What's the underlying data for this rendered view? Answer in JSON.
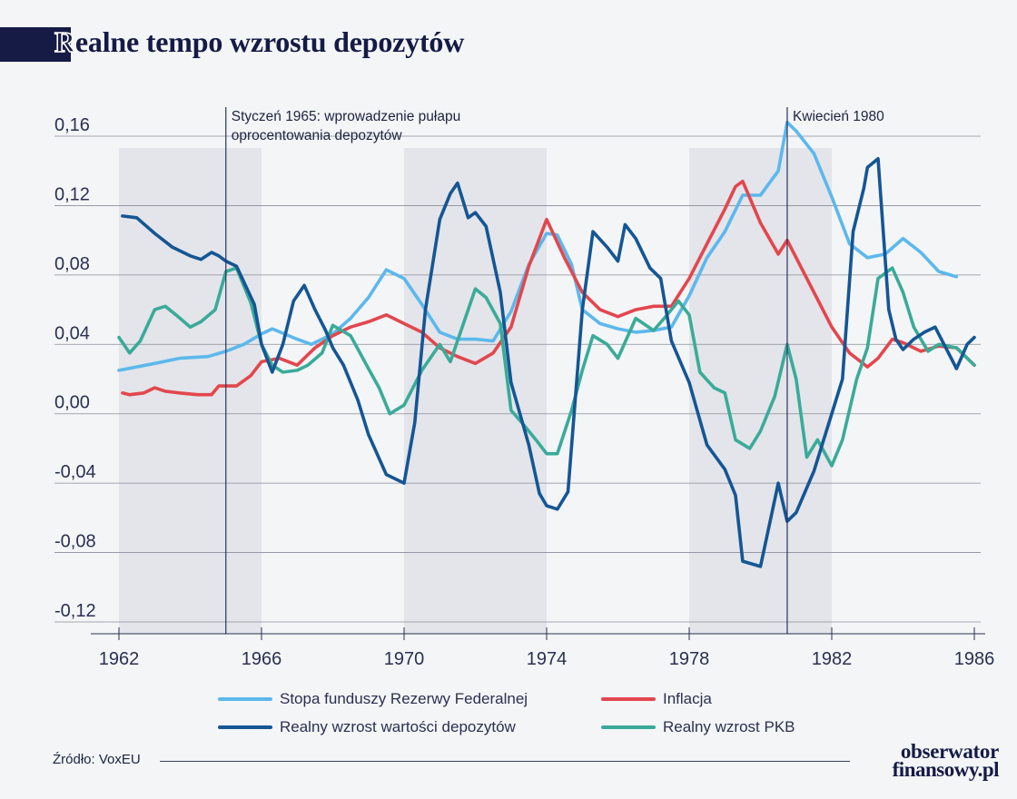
{
  "title": "Realne tempo wzrostu depozytów",
  "title_first_letter": "R",
  "title_rest": "ealne tempo wzrostu depozytów",
  "source": "Źródło: VoxEU",
  "logo": {
    "line1": "obserwator",
    "line2": "finansowy.pl"
  },
  "colors": {
    "fed": "#5cb8ec",
    "inflation": "#e2474d",
    "deposits": "#155694",
    "gdp": "#3aab98",
    "shade": "#e3e5ea",
    "grid": "#8a8d99",
    "vline": "#2a3163"
  },
  "chart_data": {
    "type": "line",
    "title": "Realne tempo wzrostu depozytów",
    "xlim": [
      1961.8,
      1986.3
    ],
    "ylim": [
      -0.125,
      0.175
    ],
    "x_ticks": [
      1962,
      1966,
      1970,
      1974,
      1978,
      1982,
      1986
    ],
    "x_tick_labels": [
      "1962",
      "1966",
      "1970",
      "1974",
      "1978",
      "1982",
      "1986"
    ],
    "y_ticks": [
      0.16,
      0.12,
      0.08,
      0.04,
      0.0,
      -0.04,
      -0.08,
      -0.12
    ],
    "y_tick_labels": [
      "0,16",
      "0,12",
      "0,08",
      "0,04",
      "0,00",
      "-0,04",
      "-0,08",
      "-0,12"
    ],
    "grid": "horizontal",
    "shaded_periods": [
      [
        1962,
        1966
      ],
      [
        1970,
        1974
      ],
      [
        1978,
        1982
      ]
    ],
    "annotations": [
      {
        "x": 1965.0,
        "lines": [
          "Styczeń 1965: wprowadzenie pułapu",
          "oprocentowania depozytów"
        ]
      },
      {
        "x": 1980.75,
        "lines": [
          "Kwiecień 1980"
        ]
      }
    ],
    "legend_position": "bottom",
    "series": [
      {
        "name": "Stopa funduszy Rezerwy Federalnej",
        "key": "fed",
        "x": [
          1962.0,
          1963.0,
          1963.7,
          1964.5,
          1965.0,
          1965.5,
          1966.0,
          1966.3,
          1967.0,
          1967.4,
          1968.0,
          1968.5,
          1969.0,
          1969.5,
          1970.0,
          1970.5,
          1971.0,
          1971.5,
          1972.0,
          1972.5,
          1973.0,
          1973.5,
          1974.0,
          1974.3,
          1974.7,
          1975.0,
          1975.5,
          1976.0,
          1976.5,
          1977.0,
          1977.5,
          1978.0,
          1978.5,
          1979.0,
          1979.5,
          1980.0,
          1980.5,
          1980.75,
          1981.0,
          1981.5,
          1982.0,
          1982.5,
          1983.0,
          1983.5,
          1984.0,
          1984.5,
          1985.0,
          1985.5
        ],
        "y": [
          0.025,
          0.029,
          0.032,
          0.033,
          0.036,
          0.04,
          0.046,
          0.049,
          0.043,
          0.04,
          0.046,
          0.055,
          0.067,
          0.083,
          0.078,
          0.063,
          0.047,
          0.043,
          0.043,
          0.042,
          0.059,
          0.086,
          0.104,
          0.103,
          0.086,
          0.06,
          0.052,
          0.049,
          0.047,
          0.048,
          0.05,
          0.068,
          0.09,
          0.105,
          0.126,
          0.126,
          0.14,
          0.168,
          0.163,
          0.15,
          0.125,
          0.098,
          0.09,
          0.092,
          0.101,
          0.093,
          0.082,
          0.079
        ]
      },
      {
        "name": "Inflacja",
        "key": "inflation",
        "x": [
          1962.1,
          1962.3,
          1962.7,
          1963.0,
          1963.3,
          1963.7,
          1964.2,
          1964.6,
          1964.8,
          1965.0,
          1965.3,
          1965.7,
          1966.0,
          1966.5,
          1967.0,
          1967.5,
          1968.0,
          1968.5,
          1969.0,
          1969.5,
          1970.0,
          1970.5,
          1971.0,
          1971.5,
          1972.0,
          1972.5,
          1973.0,
          1973.5,
          1974.0,
          1974.5,
          1975.0,
          1975.5,
          1976.0,
          1976.5,
          1977.0,
          1977.5,
          1978.0,
          1978.5,
          1979.0,
          1979.3,
          1979.5,
          1980.0,
          1980.5,
          1980.75,
          1981.0,
          1981.5,
          1982.0,
          1982.5,
          1983.0,
          1983.3,
          1983.7,
          1984.0,
          1984.5,
          1985.0,
          1985.5,
          1986.0
        ],
        "y": [
          0.012,
          0.011,
          0.012,
          0.015,
          0.013,
          0.012,
          0.011,
          0.011,
          0.016,
          0.016,
          0.016,
          0.022,
          0.03,
          0.032,
          0.028,
          0.038,
          0.045,
          0.05,
          0.053,
          0.057,
          0.052,
          0.047,
          0.038,
          0.033,
          0.029,
          0.035,
          0.05,
          0.085,
          0.112,
          0.09,
          0.07,
          0.06,
          0.056,
          0.06,
          0.062,
          0.062,
          0.078,
          0.098,
          0.118,
          0.131,
          0.134,
          0.11,
          0.092,
          0.1,
          0.09,
          0.07,
          0.05,
          0.035,
          0.027,
          0.032,
          0.043,
          0.041,
          0.036,
          0.039,
          0.038,
          0.028
        ]
      },
      {
        "name": "Realny wzrost wartości depozytów",
        "key": "deposits",
        "x": [
          1962.1,
          1962.5,
          1963.0,
          1963.5,
          1964.0,
          1964.3,
          1964.6,
          1964.8,
          1965.0,
          1965.3,
          1965.8,
          1966.0,
          1966.3,
          1966.6,
          1966.9,
          1967.2,
          1967.5,
          1967.8,
          1968.0,
          1968.3,
          1968.7,
          1969.0,
          1969.5,
          1970.0,
          1970.3,
          1970.6,
          1971.0,
          1971.3,
          1971.5,
          1971.8,
          1972.0,
          1972.3,
          1972.7,
          1973.0,
          1973.5,
          1973.8,
          1974.0,
          1974.3,
          1974.6,
          1975.0,
          1975.3,
          1975.7,
          1976.0,
          1976.2,
          1976.5,
          1976.9,
          1977.2,
          1977.5,
          1978.0,
          1978.5,
          1979.0,
          1979.3,
          1979.5,
          1980.0,
          1980.5,
          1980.75,
          1981.0,
          1981.5,
          1982.0,
          1982.3,
          1982.6,
          1982.9,
          1983.0,
          1983.3,
          1983.6,
          1983.8,
          1984.0,
          1984.3,
          1984.6,
          1984.9,
          1985.2,
          1985.5,
          1985.8,
          1986.0
        ],
        "y": [
          0.114,
          0.113,
          0.104,
          0.096,
          0.091,
          0.089,
          0.093,
          0.091,
          0.088,
          0.085,
          0.063,
          0.04,
          0.024,
          0.04,
          0.065,
          0.074,
          0.06,
          0.048,
          0.038,
          0.028,
          0.008,
          -0.012,
          -0.035,
          -0.04,
          -0.005,
          0.06,
          0.112,
          0.127,
          0.133,
          0.113,
          0.116,
          0.108,
          0.07,
          0.018,
          -0.018,
          -0.046,
          -0.053,
          -0.055,
          -0.045,
          0.06,
          0.105,
          0.096,
          0.088,
          0.109,
          0.101,
          0.084,
          0.078,
          0.042,
          0.018,
          -0.018,
          -0.032,
          -0.047,
          -0.085,
          -0.088,
          -0.04,
          -0.062,
          -0.057,
          -0.033,
          0.0,
          0.02,
          0.105,
          0.13,
          0.142,
          0.147,
          0.06,
          0.043,
          0.037,
          0.043,
          0.047,
          0.05,
          0.038,
          0.026,
          0.04,
          0.044
        ]
      },
      {
        "name": "Realny wzrost PKB",
        "key": "gdp",
        "x": [
          1962.0,
          1962.3,
          1962.6,
          1963.0,
          1963.3,
          1963.6,
          1964.0,
          1964.3,
          1964.7,
          1965.0,
          1965.3,
          1965.7,
          1966.0,
          1966.3,
          1966.6,
          1967.0,
          1967.3,
          1967.7,
          1968.0,
          1968.5,
          1969.0,
          1969.3,
          1969.6,
          1970.0,
          1970.5,
          1971.0,
          1971.3,
          1971.7,
          1972.0,
          1972.3,
          1972.7,
          1973.0,
          1973.3,
          1973.7,
          1974.0,
          1974.3,
          1974.7,
          1975.0,
          1975.3,
          1975.7,
          1976.0,
          1976.5,
          1977.0,
          1977.3,
          1977.7,
          1978.0,
          1978.3,
          1978.7,
          1979.0,
          1979.3,
          1979.7,
          1980.0,
          1980.4,
          1980.75,
          1981.0,
          1981.3,
          1981.6,
          1982.0,
          1982.3,
          1982.7,
          1983.0,
          1983.3,
          1983.7,
          1984.0,
          1984.3,
          1984.7,
          1985.0,
          1985.5,
          1986.0
        ],
        "y": [
          0.044,
          0.035,
          0.042,
          0.06,
          0.062,
          0.057,
          0.05,
          0.053,
          0.06,
          0.082,
          0.084,
          0.064,
          0.04,
          0.028,
          0.024,
          0.025,
          0.028,
          0.035,
          0.051,
          0.045,
          0.026,
          0.015,
          0.0,
          0.005,
          0.025,
          0.04,
          0.03,
          0.054,
          0.072,
          0.067,
          0.052,
          0.002,
          -0.005,
          -0.015,
          -0.023,
          -0.023,
          0.002,
          0.025,
          0.045,
          0.04,
          0.032,
          0.055,
          0.048,
          0.055,
          0.065,
          0.057,
          0.024,
          0.015,
          0.012,
          -0.015,
          -0.02,
          -0.01,
          0.01,
          0.04,
          0.02,
          -0.025,
          -0.015,
          -0.03,
          -0.015,
          0.02,
          0.038,
          0.078,
          0.084,
          0.07,
          0.05,
          0.036,
          0.04,
          0.038,
          0.028
        ]
      }
    ]
  }
}
